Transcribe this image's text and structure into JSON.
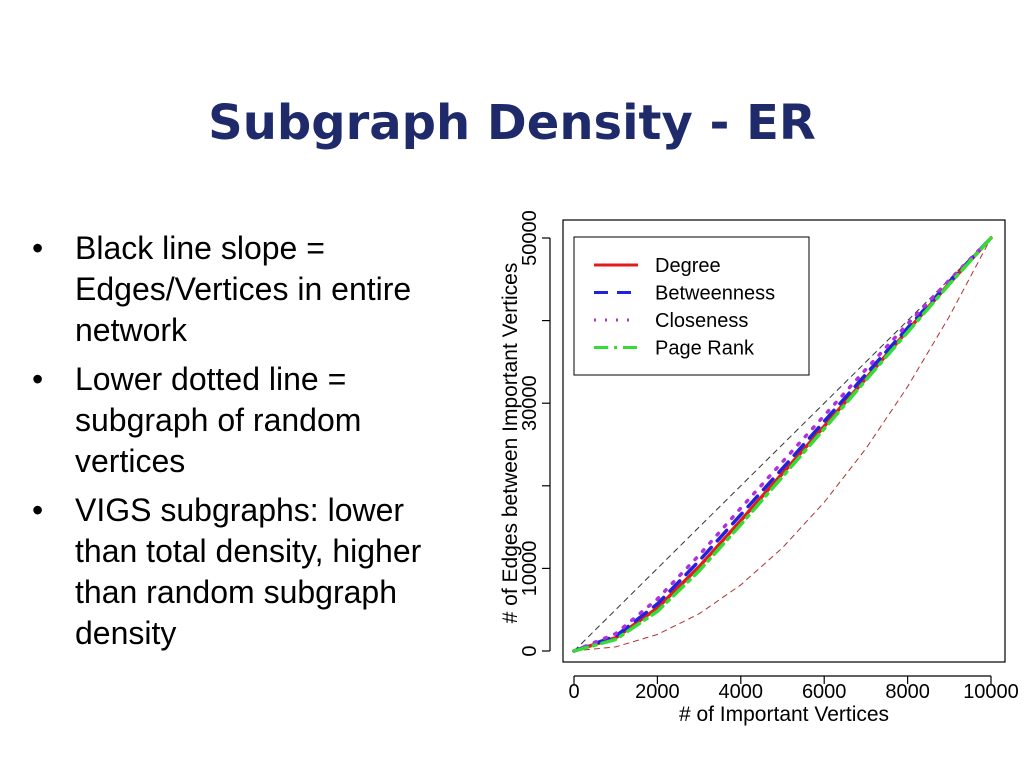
{
  "slide": {
    "title": "Subgraph Density - ER",
    "bullets": [
      "Black line slope = Edges/Vertices in entire network",
      "Lower dotted line = subgraph of random vertices",
      "VIGS subgraphs: lower than total density, higher than random subgraph density"
    ]
  },
  "chart_data": {
    "type": "line",
    "title": "",
    "xlabel": "# of Important Vertices",
    "ylabel": "# of Edges between Important Vertices",
    "xlim": [
      0,
      10000
    ],
    "ylim": [
      0,
      50000
    ],
    "x_ticks": [
      0,
      2000,
      4000,
      6000,
      8000,
      10000
    ],
    "y_ticks": [
      0,
      10000,
      30000,
      50000
    ],
    "grid": false,
    "legend_position": "top-left",
    "x": [
      0,
      1000,
      2000,
      3000,
      4000,
      5000,
      6000,
      7000,
      8000,
      9000,
      10000
    ],
    "series": [
      {
        "name": "Degree",
        "color": "#e41a1c",
        "style": "solid",
        "values": [
          0,
          1600,
          5200,
          10200,
          15800,
          21500,
          27200,
          33000,
          38800,
          44500,
          50000
        ]
      },
      {
        "name": "Betweenness",
        "color": "#2222dd",
        "style": "dashed",
        "values": [
          0,
          1800,
          5700,
          10900,
          16500,
          22100,
          27800,
          33500,
          39100,
          44700,
          50000
        ]
      },
      {
        "name": "Closeness",
        "color": "#b030e0",
        "style": "dotted",
        "values": [
          0,
          2100,
          6300,
          11600,
          17300,
          22900,
          28500,
          34100,
          39600,
          44900,
          50000
        ]
      },
      {
        "name": "Page Rank",
        "color": "#33dd33",
        "style": "dashdot",
        "values": [
          0,
          1400,
          4800,
          9700,
          15300,
          21100,
          26900,
          32800,
          38600,
          44400,
          50000
        ]
      }
    ],
    "reference_lines": [
      {
        "color": "#333333",
        "style": "dashed",
        "x": [
          0,
          10000
        ],
        "values": [
          0,
          50000
        ]
      },
      {
        "color": "#b03030",
        "style": "dashed",
        "x": [
          0,
          1000,
          2000,
          3000,
          4000,
          5000,
          6000,
          7000,
          8000,
          9000,
          10000
        ],
        "values": [
          0,
          500,
          2000,
          4500,
          8000,
          12500,
          18000,
          24500,
          32000,
          40500,
          50000
        ]
      }
    ]
  }
}
